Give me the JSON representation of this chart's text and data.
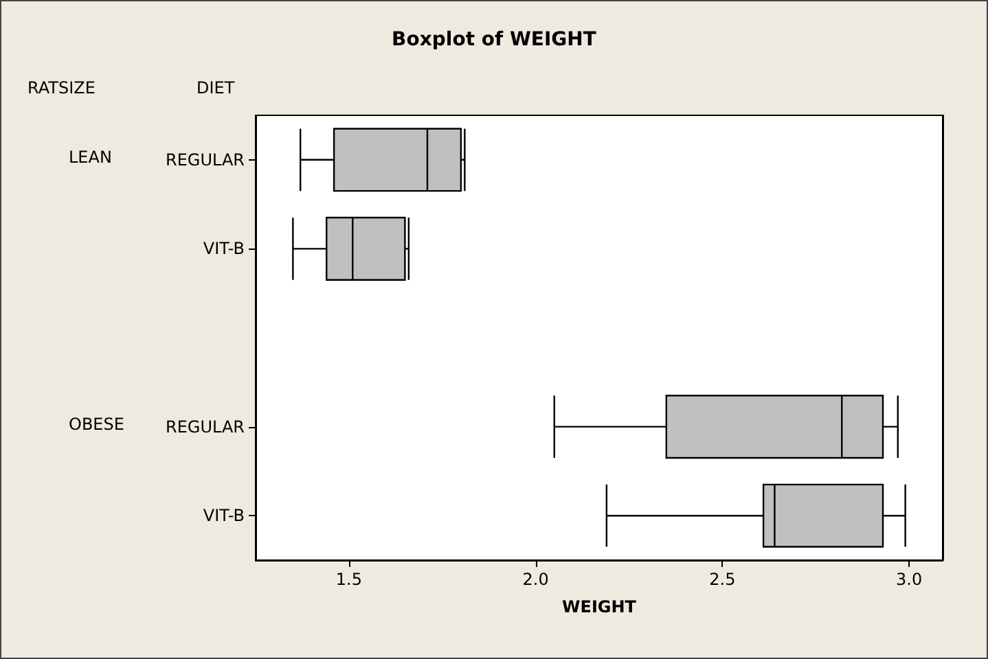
{
  "chart_data": {
    "type": "box",
    "title": "Boxplot of WEIGHT",
    "xlabel": "WEIGHT",
    "ylabel": "DIET",
    "orientation": "horizontal",
    "annotations": [
      "RATSIZE",
      "LEAN",
      "OBESE"
    ],
    "categories": [
      "REGULAR",
      "VIT-B",
      null,
      "REGULAR",
      "VIT-B"
    ],
    "color": "#c0c0c0",
    "boxes": [
      {
        "low": 1.37,
        "q1": 1.46,
        "median": 1.71,
        "q3": 1.8,
        "high": 1.81
      },
      {
        "low": 1.35,
        "q1": 1.44,
        "median": 1.51,
        "q3": 1.65,
        "high": 1.66
      },
      null,
      {
        "low": 2.05,
        "q1": 2.35,
        "median": 2.82,
        "q3": 2.93,
        "high": 2.97
      },
      {
        "low": 2.19,
        "q1": 2.61,
        "median": 2.64,
        "q3": 2.93,
        "high": 2.99
      }
    ],
    "xlim": [
      1.25,
      3.09
    ],
    "xticks": [
      1.5,
      {
        "value": 2,
        "label": "2.0"
      },
      2.5,
      {
        "value": 3,
        "label": "3.0"
      }
    ],
    "grid": false
  }
}
